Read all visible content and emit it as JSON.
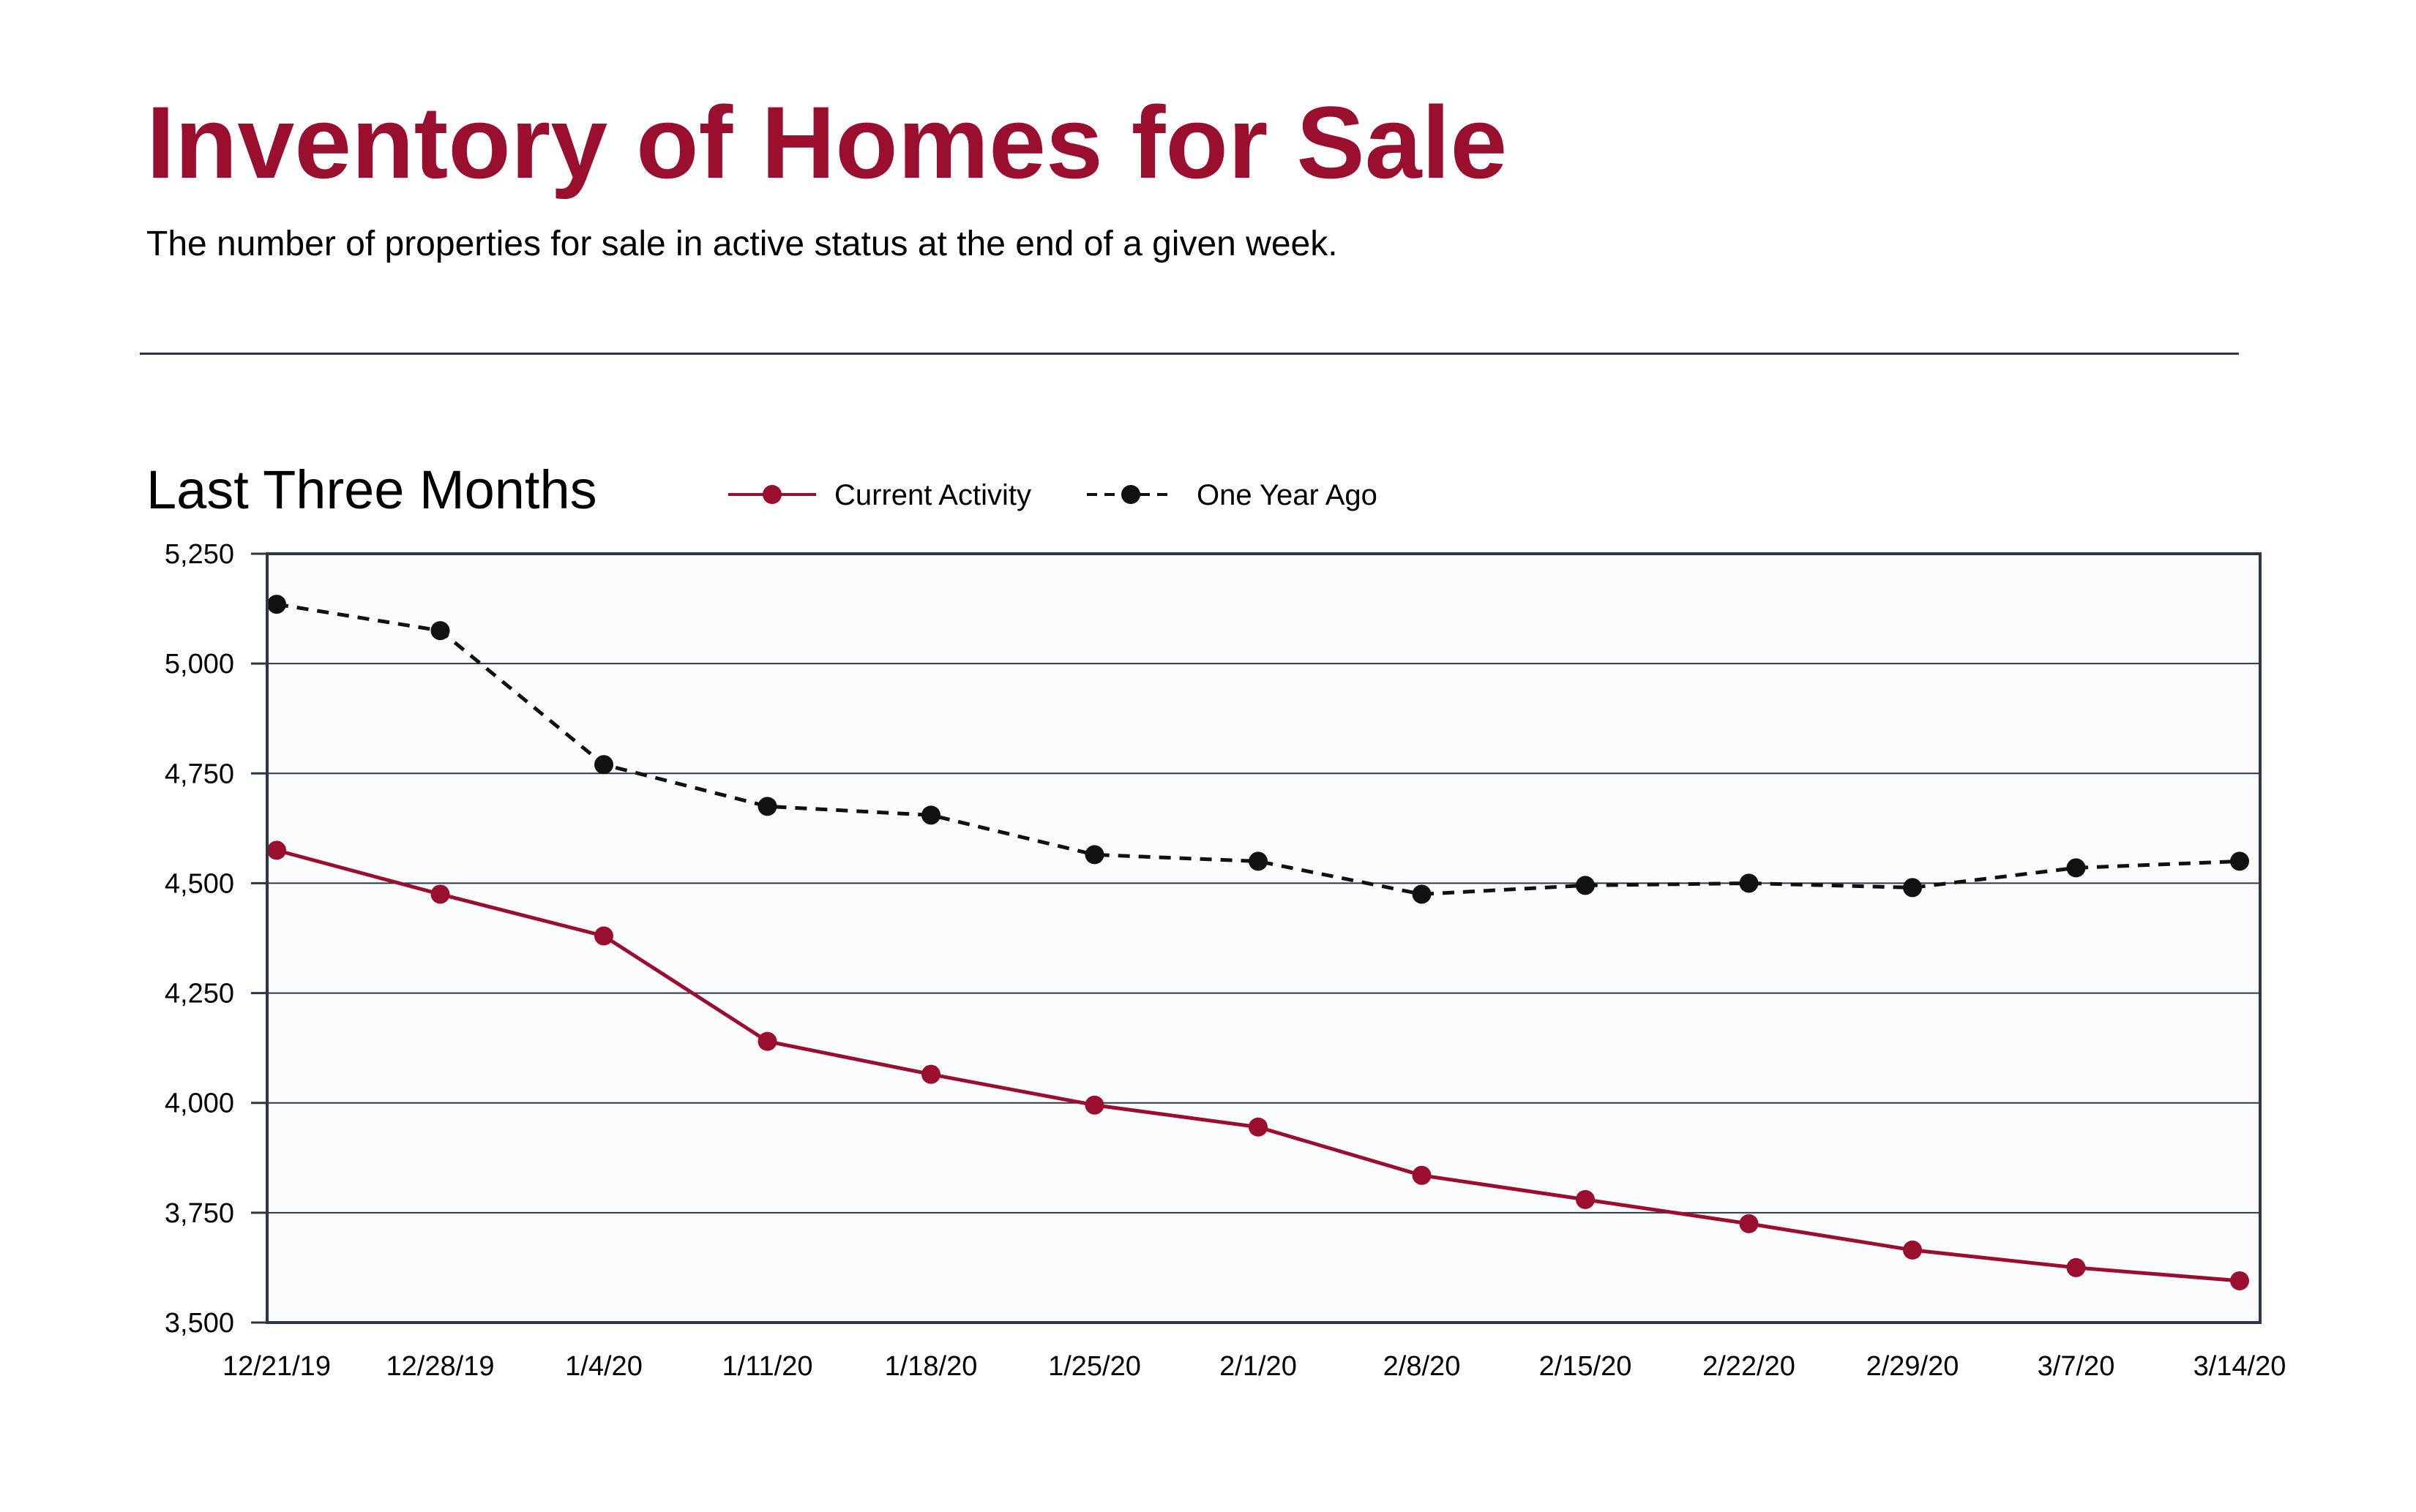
{
  "header": {
    "title": "Inventory of Homes for Sale",
    "subtitle": "The number of properties for sale in active status at the end of a given week."
  },
  "colors": {
    "title": "#9a0e2e",
    "current": "#9a0e2e",
    "year_ago": "#111111",
    "divider": "#2b3647",
    "plot_border": "#2b3647",
    "plot_background": "#fbfcfe",
    "gridline": "#2b3647",
    "text": "#000000"
  },
  "chart_data": {
    "type": "line",
    "title": "Last Three Months",
    "xlabel": "",
    "ylabel": "",
    "categories": [
      "12/21/19",
      "12/28/19",
      "1/4/20",
      "1/11/20",
      "1/18/20",
      "1/25/20",
      "2/1/20",
      "2/8/20",
      "2/15/20",
      "2/22/20",
      "2/29/20",
      "3/7/20",
      "3/14/20"
    ],
    "ylim": [
      3500,
      5250
    ],
    "yticks": [
      3500,
      3750,
      4000,
      4250,
      4500,
      4750,
      5000,
      5250
    ],
    "ytick_labels": [
      "3,500",
      "3,750",
      "4,000",
      "4,250",
      "4,500",
      "4,750",
      "5,000",
      "5,250"
    ],
    "grid": true,
    "legend_position": "top",
    "series": [
      {
        "name": "Current Activity",
        "style": "solid",
        "color": "#9a0e2e",
        "values": [
          4575,
          4475,
          4380,
          4140,
          4065,
          3995,
          3945,
          3835,
          3780,
          3725,
          3665,
          3625,
          3595
        ]
      },
      {
        "name": "One Year Ago",
        "style": "dashed",
        "color": "#111111",
        "values": [
          5135,
          5075,
          4770,
          4675,
          4655,
          4565,
          4550,
          4475,
          4495,
          4500,
          4490,
          4535,
          4550
        ]
      }
    ]
  }
}
